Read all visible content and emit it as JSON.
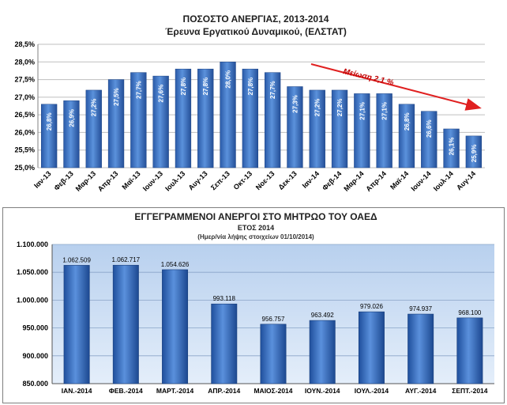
{
  "chart_data": [
    {
      "type": "bar",
      "title": "ΠΟΣΟΣΤΟ ΑΝΕΡΓΙΑΣ, 2013-2014",
      "subtitle": "Έρευνα Εργατικού Δυναμικού, (ΕΛΣΤΑΤ)",
      "xlabel": "",
      "ylabel": "",
      "ylim": [
        25.0,
        28.5
      ],
      "yticks": [
        "25,0%",
        "25,5%",
        "26,0%",
        "26,5%",
        "27,0%",
        "27,5%",
        "28,0%",
        "28,5%"
      ],
      "categories": [
        "Ιαν-13",
        "Φεβ-13",
        "Μαρ-13",
        "Απρ-13",
        "Μαϊ-13",
        "Ιουν-13",
        "Ιουλ-13",
        "Αυγ-13",
        "Σεπ-13",
        "Οκτ-13",
        "Νοε-13",
        "Δεκ-13",
        "Ιαν-14",
        "Φεβ-14",
        "Μαρ-14",
        "Απρ-14",
        "Μαϊ-14",
        "Ιουν-14",
        "Ιουλ-14",
        "Αυγ-14"
      ],
      "values": [
        26.8,
        26.9,
        27.2,
        27.5,
        27.7,
        27.6,
        27.8,
        27.8,
        28.0,
        27.8,
        27.7,
        27.3,
        27.2,
        27.2,
        27.1,
        27.1,
        26.8,
        26.6,
        26.1,
        25.9
      ],
      "value_labels": [
        "26,8%",
        "26,9%",
        "27,2%",
        "27,5%",
        "27,7%",
        "27,6%",
        "27,8%",
        "27,8%",
        "28,0%",
        "27,8%",
        "27,7%",
        "27,3%",
        "27,2%",
        "27,2%",
        "27,1%",
        "27,1%",
        "26,8%",
        "26,6%",
        "26,1%",
        "25,9%"
      ],
      "annotation": "Μείωση  2,1 %",
      "grid": true,
      "bar_color": "#3a72c4",
      "arrow_color": "#e02020"
    },
    {
      "type": "bar",
      "title": "ΕΓΓΕΓΡΑΜΜΕΝΟΙ  ΑΝΕΡΓΟΙ ΣΤΟ ΜΗΤΡΩΟ ΤΟΥ ΟΑΕΔ",
      "subtitle": "ΕΤΟΣ 2014",
      "note": "(Ημερ/νία λήψης στοιχείων 01/10/2014)",
      "xlabel": "",
      "ylabel": "",
      "ylim": [
        850000,
        1100000
      ],
      "yticks": [
        "850.000",
        "900.000",
        "950.000",
        "1.000.000",
        "1.050.000",
        "1.100.000"
      ],
      "categories": [
        "ΙΑΝ.-2014",
        "ΦΕΒ.-2014",
        "ΜΑΡΤ.-2014",
        "ΑΠΡ.-2014",
        "ΜΑΙΟΣ-2014",
        "ΙΟΥΝ.-2014",
        "ΙΟΥΛ.-2014",
        "ΑΥΓ.-2014",
        "ΣΕΠΤ.-2014"
      ],
      "values": [
        1062509,
        1062717,
        1054626,
        993118,
        956757,
        963492,
        979026,
        974937,
        968100
      ],
      "value_labels": [
        "1.062.509",
        "1.062.717",
        "1.054.626",
        "993.118",
        "956.757",
        "963.492",
        "979.026",
        "974.937",
        "968.100"
      ],
      "grid": true,
      "bar_color": "#3a72c4",
      "background_color": "#cfe0f4"
    }
  ]
}
